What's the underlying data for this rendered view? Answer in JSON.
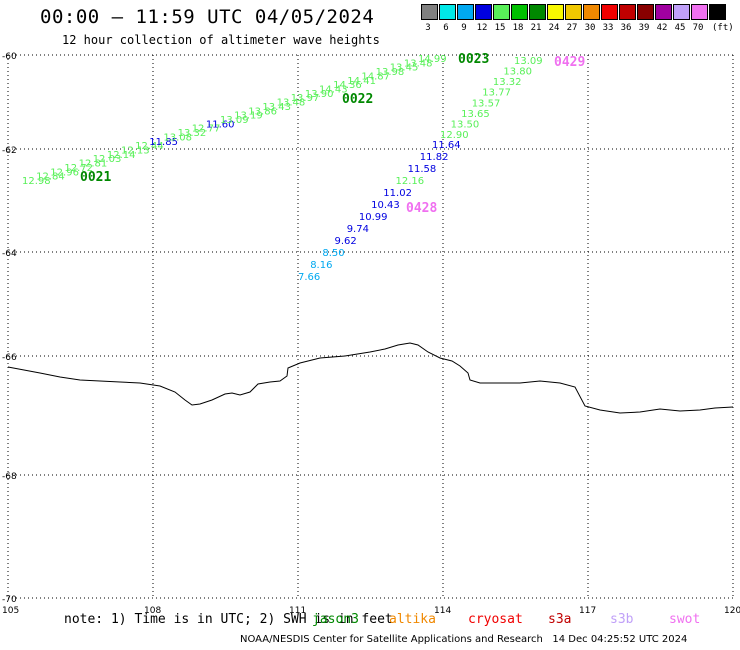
{
  "header": {
    "title": "00:00 – 11:59 UTC 04/05/2024",
    "subtitle": "12 hour collection of altimeter wave heights"
  },
  "legend": {
    "colors": [
      "#808080",
      "#00e8e8",
      "#00a8f0",
      "#0000e0",
      "#58f058",
      "#00c000",
      "#008800",
      "#f8f800",
      "#f0c800",
      "#f08800",
      "#f00000",
      "#c00000",
      "#880000",
      "#a000a0",
      "#c0a0f8",
      "#f070f0",
      "#000000"
    ],
    "labels": [
      "3",
      "6",
      "9",
      "12",
      "15",
      "18",
      "21",
      "24",
      "27",
      "30",
      "33",
      "36",
      "39",
      "42",
      "45",
      "70",
      "(ft)"
    ]
  },
  "map": {
    "lon_ticks": [
      "105",
      "108",
      "111",
      "114",
      "117",
      "120"
    ],
    "lat_ticks": [
      "-60",
      "-62",
      "-64",
      "-66",
      "-68",
      "-70"
    ],
    "coastline_color": "#000000",
    "tracks": [
      {
        "pass_label": "0021",
        "pass_color": "#008800",
        "points": [
          {
            "v": "12.98",
            "c": "#58f058"
          },
          {
            "v": "12.84",
            "c": "#58f058"
          },
          {
            "v": "12.96",
            "c": "#58f058"
          },
          {
            "v": "12.72",
            "c": "#58f058"
          },
          {
            "v": "12.81",
            "c": "#58f058"
          },
          {
            "v": "12.03",
            "c": "#58f058"
          },
          {
            "v": "12.14",
            "c": "#58f058"
          },
          {
            "v": "12.13",
            "c": "#58f058"
          },
          {
            "v": "12.44",
            "c": "#58f058"
          },
          {
            "v": "11.85",
            "c": "#0000e0"
          },
          {
            "v": "13.08",
            "c": "#58f058"
          },
          {
            "v": "13.32",
            "c": "#58f058"
          },
          {
            "v": "12.77",
            "c": "#58f058"
          },
          {
            "v": "11.60",
            "c": "#0000e0"
          },
          {
            "v": "13.09",
            "c": "#58f058"
          },
          {
            "v": "13.19",
            "c": "#58f058"
          },
          {
            "v": "13.86",
            "c": "#58f058"
          },
          {
            "v": "13.43",
            "c": "#58f058"
          },
          {
            "v": "13.48",
            "c": "#58f058"
          },
          {
            "v": "13.97",
            "c": "#58f058"
          },
          {
            "v": "13.90",
            "c": "#58f058"
          },
          {
            "v": "14.43",
            "c": "#58f058"
          },
          {
            "v": "14.36",
            "c": "#58f058"
          },
          {
            "v": "14.41",
            "c": "#58f058"
          },
          {
            "v": "14.87",
            "c": "#58f058"
          },
          {
            "v": "13.98",
            "c": "#58f058"
          },
          {
            "v": "13.45",
            "c": "#58f058"
          },
          {
            "v": "13.48",
            "c": "#58f058"
          },
          {
            "v": "14.99",
            "c": "#58f058"
          }
        ]
      },
      {
        "pass_label": "0022",
        "pass_color": "#008800",
        "points": []
      },
      {
        "pass_label": "0023",
        "pass_color": "#008800",
        "points": []
      },
      {
        "pass_label": "0428",
        "pass_color": "#f070f0",
        "points": [
          {
            "v": "7.66",
            "c": "#00a8f0"
          },
          {
            "v": "8.16",
            "c": "#00a8f0"
          },
          {
            "v": "8.50",
            "c": "#00a8f0"
          },
          {
            "v": "9.62",
            "c": "#0000e0"
          },
          {
            "v": "9.74",
            "c": "#0000e0"
          },
          {
            "v": "10.99",
            "c": "#0000e0"
          },
          {
            "v": "10.43",
            "c": "#0000e0"
          },
          {
            "v": "11.02",
            "c": "#0000e0"
          },
          {
            "v": "12.16",
            "c": "#58f058"
          },
          {
            "v": "11.58",
            "c": "#0000e0"
          },
          {
            "v": "11.82",
            "c": "#0000e0"
          },
          {
            "v": "11.64",
            "c": "#0000e0"
          }
        ]
      },
      {
        "pass_label": "0429",
        "pass_color": "#f070f0",
        "points": [
          {
            "v": "12.90",
            "c": "#58f058"
          },
          {
            "v": "13.50",
            "c": "#58f058"
          },
          {
            "v": "13.65",
            "c": "#58f058"
          },
          {
            "v": "13.57",
            "c": "#58f058"
          },
          {
            "v": "13.77",
            "c": "#58f058"
          },
          {
            "v": "13.32",
            "c": "#58f058"
          },
          {
            "v": "13.80",
            "c": "#58f058"
          },
          {
            "v": "13.09",
            "c": "#58f058"
          }
        ]
      }
    ]
  },
  "footer_note": {
    "text": "note: 1) Time is in UTC; 2) SWH is in feet",
    "satellites": [
      {
        "name": "jason3",
        "color": "#008800"
      },
      {
        "name": "altika",
        "color": "#f08800"
      },
      {
        "name": "cryosat",
        "color": "#f00000"
      },
      {
        "name": "s3a",
        "color": "#c00000"
      },
      {
        "name": "s3b",
        "color": "#c0a0f8"
      },
      {
        "name": "swot",
        "color": "#f070f0"
      }
    ]
  },
  "credits": "NOAA/NESDIS Center for Satellite Applications and Research   14 Dec 04:25:52 UTC 2024"
}
